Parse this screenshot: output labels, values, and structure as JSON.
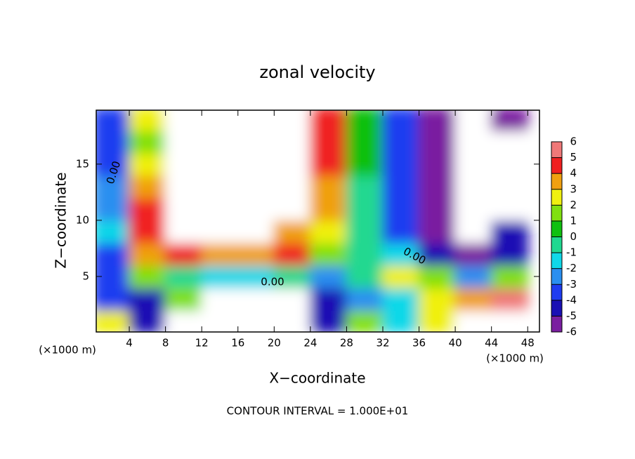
{
  "chart_data": {
    "type": "contour",
    "title": "zonal velocity",
    "x_label": "X−coordinate",
    "y_label": "Z−coordinate",
    "x_unit": "(×1000 m)",
    "y_unit": "(×1000 m)",
    "footnote": "CONTOUR INTERVAL = 1.000E+01",
    "contour_labels": [
      "0.00",
      "0.00",
      "0.00"
    ],
    "xlim": [
      0.35,
      49.3
    ],
    "ylim": [
      0.06,
      19.8
    ],
    "xticks": [
      4,
      8,
      12,
      16,
      20,
      24,
      28,
      32,
      36,
      40,
      44,
      48
    ],
    "yticks": [
      5,
      10,
      15
    ],
    "x": [
      2,
      6,
      10,
      14,
      18,
      22,
      26,
      30,
      34,
      38,
      42,
      46
    ],
    "y": [
      1,
      3,
      5,
      7,
      9,
      11,
      13,
      15,
      17,
      19
    ],
    "z": [
      [
        3,
        -4,
        10,
        10,
        10,
        10,
        -4,
        2,
        -1,
        3,
        10,
        10
      ],
      [
        -3,
        -4,
        2,
        8,
        8,
        8,
        -4,
        -2,
        -1,
        3,
        4,
        6
      ],
      [
        -3,
        2,
        0,
        -1,
        -1,
        0,
        -2,
        0,
        3,
        2,
        -2,
        2
      ],
      [
        -3,
        4,
        5,
        4,
        4,
        5,
        2,
        0,
        -1,
        -4,
        -5,
        -4
      ],
      [
        -1,
        5,
        10,
        10,
        10,
        4,
        3,
        0,
        -3,
        -6,
        10,
        -4
      ],
      [
        -2,
        5,
        10,
        10,
        10,
        10,
        4,
        0,
        -3,
        -6,
        10,
        10
      ],
      [
        -2,
        4,
        10,
        10,
        10,
        10,
        4,
        0,
        -3,
        -6,
        10,
        10
      ],
      [
        -3,
        3,
        10,
        10,
        10,
        10,
        5,
        1,
        -3,
        -6,
        10,
        10
      ],
      [
        -3,
        2,
        10,
        10,
        10,
        10,
        5,
        1,
        -3,
        -6,
        10,
        10
      ],
      [
        -3,
        3,
        7,
        10,
        10,
        10,
        5,
        1,
        -3,
        -6,
        10,
        -5
      ]
    ],
    "colorbar_ticks": [
      -6,
      -5,
      -4,
      -3,
      -2,
      -1,
      0,
      1,
      2,
      3,
      4,
      5,
      6
    ],
    "colorscale": [
      "#7a1fa0",
      "#1a10b4",
      "#1f3cf0",
      "#2a8ff0",
      "#10d8e8",
      "#20d890",
      "#10c010",
      "#80e010",
      "#f0f010",
      "#f0a010",
      "#f02020",
      "#f07878"
    ]
  }
}
